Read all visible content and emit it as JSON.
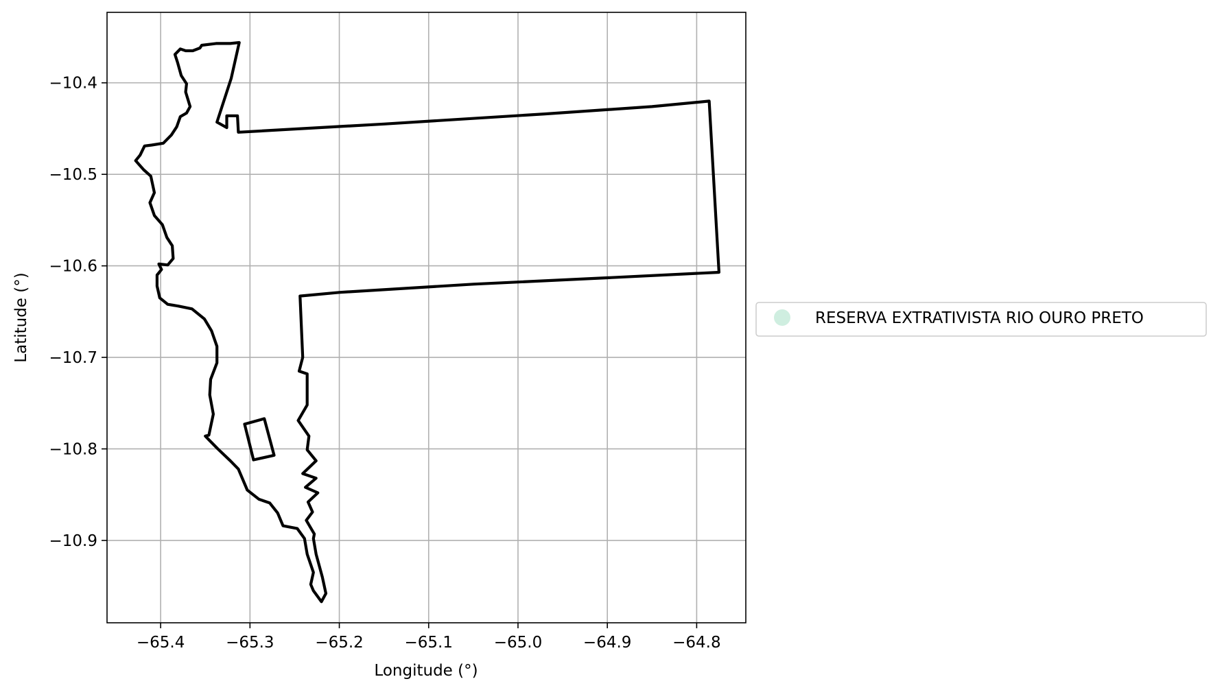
{
  "map": {
    "xlabel": "Longitude (°)",
    "ylabel": "Latitude (°)",
    "xlim": [
      -65.46,
      -64.745
    ],
    "ylim": [
      -10.99,
      -10.323
    ],
    "grid": true,
    "legend_placement": "center-right-outside",
    "x_ticks": [
      {
        "value": -65.4,
        "label": "−65.4"
      },
      {
        "value": -65.3,
        "label": "−65.3"
      },
      {
        "value": -65.2,
        "label": "−65.2"
      },
      {
        "value": -65.1,
        "label": "−65.1"
      },
      {
        "value": -65.0,
        "label": "−65.0"
      },
      {
        "value": -64.9,
        "label": "−64.9"
      },
      {
        "value": -64.8,
        "label": "−64.8"
      }
    ],
    "y_ticks": [
      {
        "value": -10.4,
        "label": "−10.4"
      },
      {
        "value": -10.5,
        "label": "−10.5"
      },
      {
        "value": -10.6,
        "label": "−10.6"
      },
      {
        "value": -10.7,
        "label": "−10.7"
      },
      {
        "value": -10.8,
        "label": "−10.8"
      },
      {
        "value": -10.9,
        "label": "−10.9"
      }
    ],
    "legend": [
      {
        "label": "RESERVA EXTRATIVISTA RIO OURO PRETO",
        "color": "#cfeee0"
      }
    ],
    "boundary_color": "#000000",
    "fill_color": "#cfeee0",
    "features": [
      {
        "name": "reserve-outer-boundary",
        "coords": [
          [
            -65.312,
            -10.356
          ],
          [
            -65.322,
            -10.357
          ],
          [
            -65.338,
            -10.357
          ],
          [
            -65.354,
            -10.359
          ],
          [
            -65.356,
            -10.362
          ],
          [
            -65.364,
            -10.365
          ],
          [
            -65.372,
            -10.365
          ],
          [
            -65.378,
            -10.363
          ],
          [
            -65.384,
            -10.369
          ],
          [
            -65.381,
            -10.378
          ],
          [
            -65.377,
            -10.392
          ],
          [
            -65.371,
            -10.401
          ],
          [
            -65.372,
            -10.41
          ],
          [
            -65.367,
            -10.426
          ],
          [
            -65.371,
            -10.433
          ],
          [
            -65.378,
            -10.437
          ],
          [
            -65.382,
            -10.448
          ],
          [
            -65.388,
            -10.457
          ],
          [
            -65.397,
            -10.466
          ],
          [
            -65.41,
            -10.468
          ],
          [
            -65.418,
            -10.469
          ],
          [
            -65.423,
            -10.479
          ],
          [
            -65.428,
            -10.485
          ],
          [
            -65.419,
            -10.495
          ],
          [
            -65.411,
            -10.502
          ],
          [
            -65.407,
            -10.52
          ],
          [
            -65.412,
            -10.531
          ],
          [
            -65.407,
            -10.545
          ],
          [
            -65.398,
            -10.555
          ],
          [
            -65.393,
            -10.569
          ],
          [
            -65.387,
            -10.578
          ],
          [
            -65.386,
            -10.592
          ],
          [
            -65.392,
            -10.599
          ],
          [
            -65.402,
            -10.598
          ],
          [
            -65.399,
            -10.604
          ],
          [
            -65.404,
            -10.61
          ],
          [
            -65.404,
            -10.622
          ],
          [
            -65.401,
            -10.635
          ],
          [
            -65.392,
            -10.642
          ],
          [
            -65.38,
            -10.644
          ],
          [
            -65.365,
            -10.647
          ],
          [
            -65.351,
            -10.658
          ],
          [
            -65.343,
            -10.671
          ],
          [
            -65.337,
            -10.688
          ],
          [
            -65.337,
            -10.706
          ],
          [
            -65.344,
            -10.724
          ],
          [
            -65.345,
            -10.741
          ],
          [
            -65.341,
            -10.762
          ],
          [
            -65.346,
            -10.785
          ],
          [
            -65.35,
            -10.786
          ],
          [
            -65.345,
            -10.791
          ],
          [
            -65.336,
            -10.8
          ],
          [
            -65.322,
            -10.813
          ],
          [
            -65.313,
            -10.822
          ],
          [
            -65.303,
            -10.845
          ],
          [
            -65.29,
            -10.855
          ],
          [
            -65.278,
            -10.859
          ],
          [
            -65.269,
            -10.87
          ],
          [
            -65.263,
            -10.884
          ],
          [
            -65.247,
            -10.887
          ],
          [
            -65.239,
            -10.898
          ],
          [
            -65.236,
            -10.915
          ],
          [
            -65.229,
            -10.935
          ],
          [
            -65.232,
            -10.948
          ],
          [
            -65.229,
            -10.955
          ],
          [
            -65.22,
            -10.967
          ],
          [
            -65.215,
            -10.958
          ],
          [
            -65.219,
            -10.94
          ],
          [
            -65.226,
            -10.915
          ],
          [
            -65.229,
            -10.898
          ],
          [
            -65.228,
            -10.893
          ],
          [
            -65.237,
            -10.878
          ],
          [
            -65.23,
            -10.869
          ],
          [
            -65.235,
            -10.858
          ],
          [
            -65.224,
            -10.848
          ],
          [
            -65.238,
            -10.842
          ],
          [
            -65.226,
            -10.832
          ],
          [
            -65.241,
            -10.827
          ],
          [
            -65.226,
            -10.813
          ],
          [
            -65.236,
            -10.801
          ],
          [
            -65.234,
            -10.786
          ],
          [
            -65.246,
            -10.769
          ],
          [
            -65.236,
            -10.752
          ],
          [
            -65.236,
            -10.718
          ],
          [
            -65.245,
            -10.715
          ],
          [
            -65.241,
            -10.7
          ],
          [
            -65.244,
            -10.633
          ],
          [
            -65.2,
            -10.629
          ],
          [
            -65.05,
            -10.62
          ],
          [
            -64.9,
            -10.613
          ],
          [
            -64.775,
            -10.607
          ],
          [
            -64.786,
            -10.42
          ],
          [
            -64.85,
            -10.426
          ],
          [
            -64.97,
            -10.434
          ],
          [
            -65.15,
            -10.445
          ],
          [
            -65.313,
            -10.454
          ],
          [
            -65.314,
            -10.436
          ],
          [
            -65.326,
            -10.436
          ],
          [
            -65.326,
            -10.449
          ],
          [
            -65.337,
            -10.443
          ],
          [
            -65.321,
            -10.395
          ]
        ]
      },
      {
        "name": "reserve-inner-polygon",
        "coords": [
          [
            -65.306,
            -10.773
          ],
          [
            -65.296,
            -10.812
          ],
          [
            -65.273,
            -10.807
          ],
          [
            -65.284,
            -10.767
          ]
        ]
      }
    ]
  }
}
